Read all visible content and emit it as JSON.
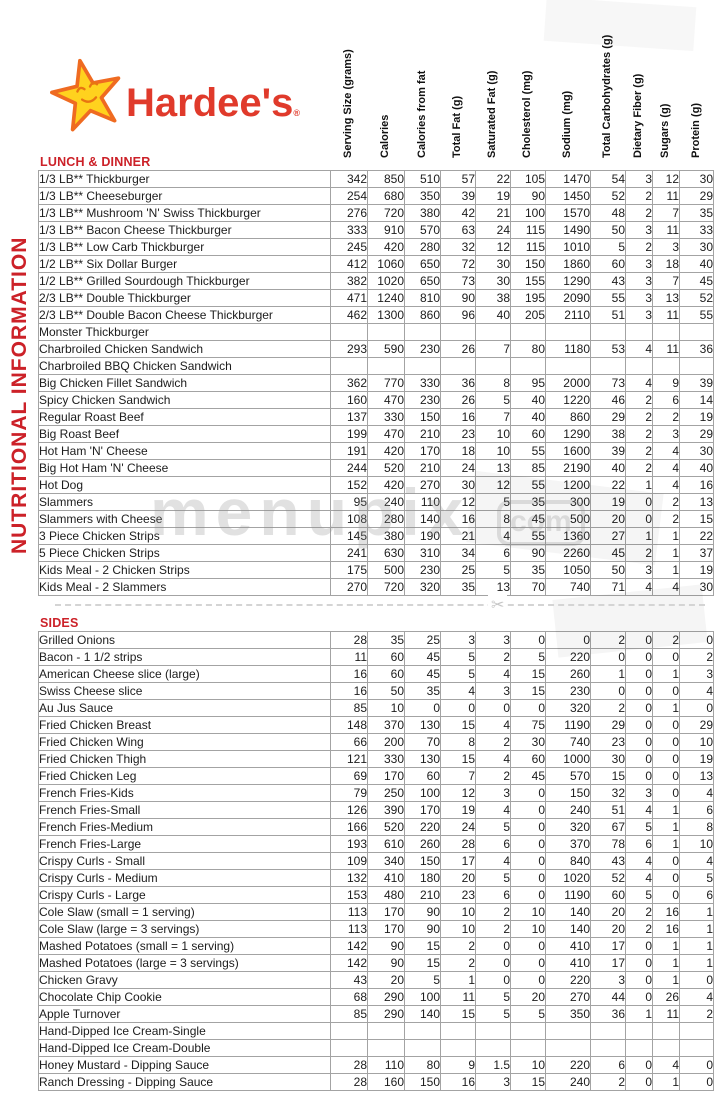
{
  "page": {
    "vertical_title": "NUTRITIONAL INFORMATION"
  },
  "brand": {
    "name": "Hardee's",
    "mark": "®"
  },
  "watermark": {
    "text": "menupix",
    "badge": "com"
  },
  "colors": {
    "accent_red": "#cc2128",
    "logo_red": "#e03a2b",
    "star_yellow": "#ffd21e",
    "star_outline": "#ef6b21",
    "grid_gray": "#a3a3a3"
  },
  "columns": [
    "Serving Size (grams)",
    "Calories",
    "Calories from fat",
    "Total Fat (g)",
    "Saturated Fat (g)",
    "Cholesterol (mg)",
    "Sodium (mg)",
    "Total Carbohydrates (g)",
    "Dietary Fiber (g)",
    "Sugars (g)",
    "Protein (g)"
  ],
  "sections": [
    {
      "title": "LUNCH & DINNER",
      "rows": [
        {
          "name": "1/3 LB** Thickburger",
          "values": [
            342,
            850,
            510,
            57,
            22,
            105,
            1470,
            54,
            3,
            12,
            30
          ]
        },
        {
          "name": "1/3 LB** Cheeseburger",
          "values": [
            254,
            680,
            350,
            39,
            19,
            90,
            1450,
            52,
            2,
            11,
            29
          ]
        },
        {
          "name": "1/3 LB** Mushroom 'N' Swiss Thickburger",
          "values": [
            276,
            720,
            380,
            42,
            21,
            100,
            1570,
            48,
            2,
            7,
            35
          ]
        },
        {
          "name": "1/3 LB** Bacon Cheese Thickburger",
          "values": [
            333,
            910,
            570,
            63,
            24,
            115,
            1490,
            50,
            3,
            11,
            33
          ]
        },
        {
          "name": "1/3 LB** Low Carb Thickburger",
          "values": [
            245,
            420,
            280,
            32,
            12,
            115,
            1010,
            5,
            2,
            3,
            30
          ]
        },
        {
          "name": "1/2 LB** Six Dollar Burger",
          "values": [
            412,
            1060,
            650,
            72,
            30,
            150,
            1860,
            60,
            3,
            18,
            40
          ]
        },
        {
          "name": "1/2 LB** Grilled Sourdough Thickburger",
          "values": [
            382,
            1020,
            650,
            73,
            30,
            155,
            1290,
            43,
            3,
            7,
            45
          ]
        },
        {
          "name": "2/3 LB** Double Thickburger",
          "values": [
            471,
            1240,
            810,
            90,
            38,
            195,
            2090,
            55,
            3,
            13,
            52
          ]
        },
        {
          "name": "2/3 LB** Double Bacon Cheese Thickburger",
          "values": [
            462,
            1300,
            860,
            96,
            40,
            205,
            2110,
            51,
            3,
            11,
            55
          ]
        },
        {
          "name": "Monster Thickburger",
          "values": []
        },
        {
          "name": "Charbroiled Chicken Sandwich",
          "values": [
            293,
            590,
            230,
            26,
            7,
            80,
            1180,
            53,
            4,
            11,
            36
          ]
        },
        {
          "name": "Charbroiled BBQ Chicken Sandwich",
          "values": []
        },
        {
          "name": "Big Chicken Fillet Sandwich",
          "values": [
            362,
            770,
            330,
            36,
            8,
            95,
            2000,
            73,
            4,
            9,
            39
          ]
        },
        {
          "name": "Spicy Chicken Sandwich",
          "values": [
            160,
            470,
            230,
            26,
            5,
            40,
            1220,
            46,
            2,
            6,
            14
          ]
        },
        {
          "name": "Regular Roast Beef",
          "values": [
            137,
            330,
            150,
            16,
            7,
            40,
            860,
            29,
            2,
            2,
            19
          ]
        },
        {
          "name": "Big Roast Beef",
          "values": [
            199,
            470,
            210,
            23,
            10,
            60,
            1290,
            38,
            2,
            3,
            29
          ]
        },
        {
          "name": "Hot Ham 'N' Cheese",
          "values": [
            191,
            420,
            170,
            18,
            10,
            55,
            1600,
            39,
            2,
            4,
            30
          ]
        },
        {
          "name": "Big Hot Ham 'N' Cheese",
          "values": [
            244,
            520,
            210,
            24,
            13,
            85,
            2190,
            40,
            2,
            4,
            40
          ]
        },
        {
          "name": "Hot Dog",
          "values": [
            152,
            420,
            270,
            30,
            12,
            55,
            1200,
            22,
            1,
            4,
            16
          ]
        },
        {
          "name": "Slammers",
          "values": [
            95,
            240,
            110,
            12,
            5,
            35,
            300,
            19,
            0,
            2,
            13
          ]
        },
        {
          "name": "Slammers with Cheese",
          "values": [
            108,
            280,
            140,
            16,
            8,
            45,
            500,
            20,
            0,
            2,
            15
          ]
        },
        {
          "name": "3 Piece Chicken Strips",
          "values": [
            145,
            380,
            190,
            21,
            4,
            55,
            1360,
            27,
            1,
            1,
            22
          ]
        },
        {
          "name": "5 Piece Chicken Strips",
          "values": [
            241,
            630,
            310,
            34,
            6,
            90,
            2260,
            45,
            2,
            1,
            37
          ]
        },
        {
          "name": "Kids Meal - 2 Chicken Strips",
          "values": [
            175,
            500,
            230,
            25,
            5,
            35,
            1050,
            50,
            3,
            1,
            19
          ]
        },
        {
          "name": "Kids Meal - 2 Slammers",
          "values": [
            270,
            720,
            320,
            35,
            13,
            70,
            740,
            71,
            4,
            4,
            30
          ]
        }
      ]
    },
    {
      "title": "SIDES",
      "rows": [
        {
          "name": "Grilled Onions",
          "values": [
            28,
            35,
            25,
            3,
            3,
            0,
            0,
            2,
            0,
            2,
            0
          ]
        },
        {
          "name": "Bacon - 1 1/2 strips",
          "values": [
            11,
            60,
            45,
            5,
            2,
            5,
            220,
            0,
            0,
            0,
            2
          ]
        },
        {
          "name": "American Cheese slice (large)",
          "values": [
            16,
            60,
            45,
            5,
            4,
            15,
            260,
            1,
            0,
            1,
            3
          ]
        },
        {
          "name": "Swiss Cheese slice",
          "values": [
            16,
            50,
            35,
            4,
            3,
            15,
            230,
            0,
            0,
            0,
            4
          ]
        },
        {
          "name": "Au Jus Sauce",
          "values": [
            85,
            10,
            0,
            0,
            0,
            0,
            320,
            2,
            0,
            1,
            0
          ]
        },
        {
          "name": "Fried Chicken Breast",
          "values": [
            148,
            370,
            130,
            15,
            4,
            75,
            1190,
            29,
            0,
            0,
            29
          ]
        },
        {
          "name": "Fried Chicken Wing",
          "values": [
            66,
            200,
            70,
            8,
            2,
            30,
            740,
            23,
            0,
            0,
            10
          ]
        },
        {
          "name": "Fried Chicken Thigh",
          "values": [
            121,
            330,
            130,
            15,
            4,
            60,
            1000,
            30,
            0,
            0,
            19
          ]
        },
        {
          "name": "Fried Chicken Leg",
          "values": [
            69,
            170,
            60,
            7,
            2,
            45,
            570,
            15,
            0,
            0,
            13
          ]
        },
        {
          "name": "French Fries-Kids",
          "values": [
            79,
            250,
            100,
            12,
            3,
            0,
            150,
            32,
            3,
            0,
            4
          ]
        },
        {
          "name": "French Fries-Small",
          "values": [
            126,
            390,
            170,
            19,
            4,
            0,
            240,
            51,
            4,
            1,
            6
          ]
        },
        {
          "name": "French Fries-Medium",
          "values": [
            166,
            520,
            220,
            24,
            5,
            0,
            320,
            67,
            5,
            1,
            8
          ]
        },
        {
          "name": "French Fries-Large",
          "values": [
            193,
            610,
            260,
            28,
            6,
            0,
            370,
            78,
            6,
            1,
            10
          ]
        },
        {
          "name": "Crispy Curls - Small",
          "values": [
            109,
            340,
            150,
            17,
            4,
            0,
            840,
            43,
            4,
            0,
            4
          ]
        },
        {
          "name": "Crispy Curls - Medium",
          "values": [
            132,
            410,
            180,
            20,
            5,
            0,
            1020,
            52,
            4,
            0,
            5
          ]
        },
        {
          "name": "Crispy Curls - Large",
          "values": [
            153,
            480,
            210,
            23,
            6,
            0,
            1190,
            60,
            5,
            0,
            6
          ]
        },
        {
          "name": "Cole Slaw (small = 1 serving)",
          "values": [
            113,
            170,
            90,
            10,
            2,
            10,
            140,
            20,
            2,
            16,
            1
          ]
        },
        {
          "name": "Cole Slaw (large = 3 servings)",
          "values": [
            113,
            170,
            90,
            10,
            2,
            10,
            140,
            20,
            2,
            16,
            1
          ]
        },
        {
          "name": "Mashed Potatoes (small = 1 serving)",
          "values": [
            142,
            90,
            15,
            2,
            0,
            0,
            410,
            17,
            0,
            1,
            1
          ]
        },
        {
          "name": "Mashed Potatoes (large = 3 servings)",
          "values": [
            142,
            90,
            15,
            2,
            0,
            0,
            410,
            17,
            0,
            1,
            1
          ]
        },
        {
          "name": "Chicken Gravy",
          "values": [
            43,
            20,
            5,
            1,
            0,
            0,
            220,
            3,
            0,
            1,
            0
          ]
        },
        {
          "name": "Chocolate Chip Cookie",
          "values": [
            68,
            290,
            100,
            11,
            5,
            20,
            270,
            44,
            0,
            26,
            4
          ]
        },
        {
          "name": "Apple Turnover",
          "values": [
            85,
            290,
            140,
            15,
            5,
            5,
            350,
            36,
            1,
            11,
            2
          ]
        },
        {
          "name": "Hand-Dipped Ice Cream-Single",
          "values": []
        },
        {
          "name": "Hand-Dipped Ice Cream-Double",
          "values": []
        },
        {
          "name": "Honey Mustard - Dipping Sauce",
          "values": [
            28,
            110,
            80,
            9,
            1.5,
            10,
            220,
            6,
            0,
            4,
            0
          ]
        },
        {
          "name": "Ranch Dressing - Dipping Sauce",
          "values": [
            28,
            160,
            150,
            16,
            3,
            15,
            240,
            2,
            0,
            1,
            0
          ]
        }
      ]
    }
  ]
}
